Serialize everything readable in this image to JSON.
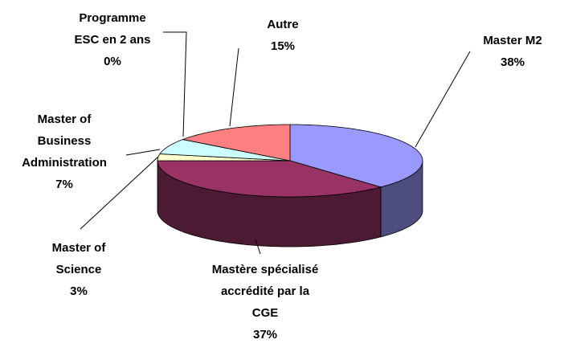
{
  "chart_data": {
    "type": "pie3d",
    "categories": [
      "Master M2",
      "Mastère spécialisé accrédité par la CGE",
      "Master of Science",
      "Master of Business Administration",
      "Programme ESC en 2 ans",
      "Autre"
    ],
    "values": [
      38,
      37,
      3,
      7,
      0,
      15
    ],
    "value_labels": [
      "38%",
      "37%",
      "3%",
      "7%",
      "0%",
      "15%"
    ],
    "colors": [
      "#9999ff",
      "#993366",
      "#ffffcc",
      "#ccffff",
      "#660066",
      "#ff8080"
    ]
  }
}
